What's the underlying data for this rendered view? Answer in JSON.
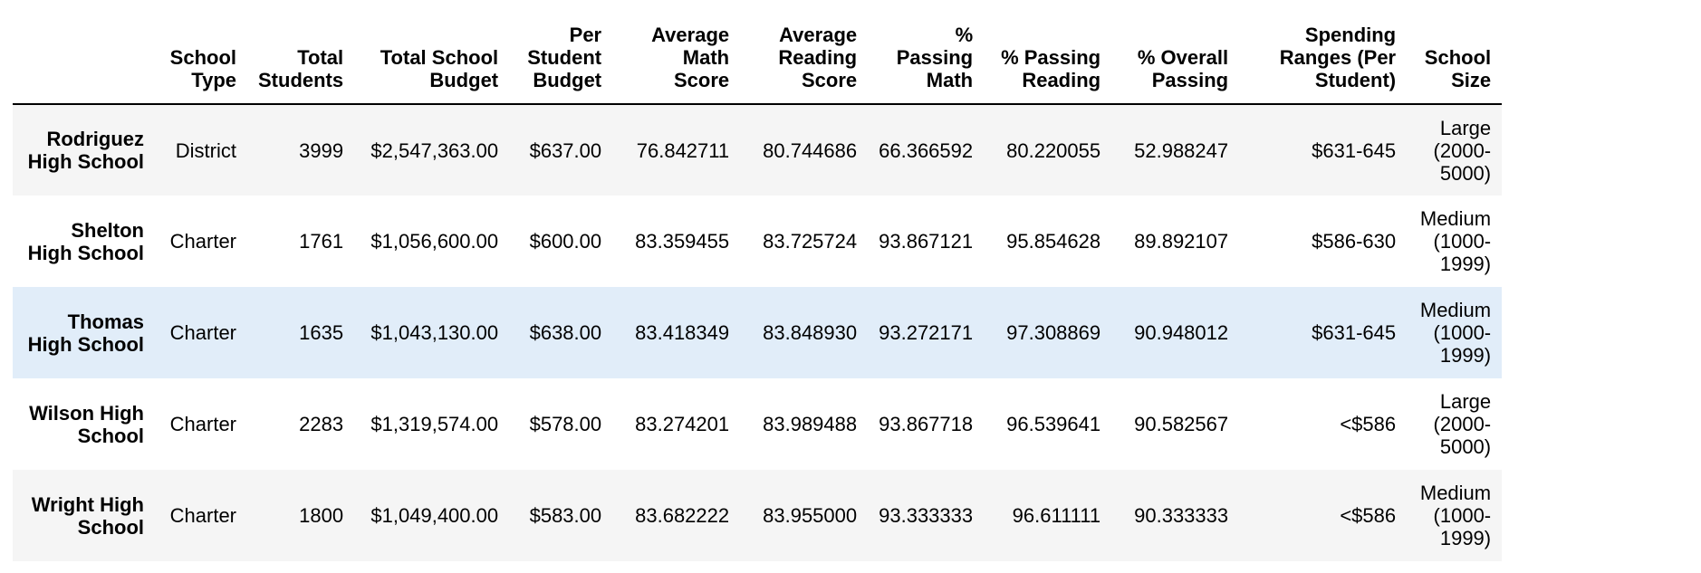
{
  "table": {
    "columns": [
      "",
      "School Type",
      "Total Students",
      "Total School Budget",
      "Per Student Budget",
      "Average Math Score",
      "Average Reading Score",
      "% Passing Math",
      "% Passing Reading",
      "% Overall Passing",
      "Spending Ranges (Per Student)",
      "School Size"
    ],
    "rows": [
      {
        "school": "Rodriguez High School",
        "type": "District",
        "students": "3999",
        "budget": "$2,547,363.00",
        "per_student": "$637.00",
        "math": "76.842711",
        "reading": "80.744686",
        "pass_math": "66.366592",
        "pass_reading": "80.220055",
        "overall": "52.988247",
        "spending": "$631-645",
        "size": "Large (2000-5000)"
      },
      {
        "school": "Shelton High School",
        "type": "Charter",
        "students": "1761",
        "budget": "$1,056,600.00",
        "per_student": "$600.00",
        "math": "83.359455",
        "reading": "83.725724",
        "pass_math": "93.867121",
        "pass_reading": "95.854628",
        "overall": "89.892107",
        "spending": "$586-630",
        "size": "Medium (1000-1999)"
      },
      {
        "school": "Thomas High School",
        "type": "Charter",
        "students": "1635",
        "budget": "$1,043,130.00",
        "per_student": "$638.00",
        "math": "83.418349",
        "reading": "83.848930",
        "pass_math": "93.272171",
        "pass_reading": "97.308869",
        "overall": "90.948012",
        "spending": "$631-645",
        "size": "Medium (1000-1999)"
      },
      {
        "school": "Wilson High School",
        "type": "Charter",
        "students": "2283",
        "budget": "$1,319,574.00",
        "per_student": "$578.00",
        "math": "83.274201",
        "reading": "83.989488",
        "pass_math": "93.867718",
        "pass_reading": "96.539641",
        "overall": "90.582567",
        "spending": "<$586",
        "size": "Large (2000-5000)"
      },
      {
        "school": "Wright High School",
        "type": "Charter",
        "students": "1800",
        "budget": "$1,049,400.00",
        "per_student": "$583.00",
        "math": "83.682222",
        "reading": "83.955000",
        "pass_math": "93.333333",
        "pass_reading": "96.611111",
        "overall": "90.333333",
        "spending": "<$586",
        "size": "Medium (1000-1999)"
      }
    ]
  },
  "colors": {
    "row_odd": "#f5f5f5",
    "row_even": "#ffffff",
    "row_hover": "#e1edf9",
    "header_rule": "#000000"
  }
}
